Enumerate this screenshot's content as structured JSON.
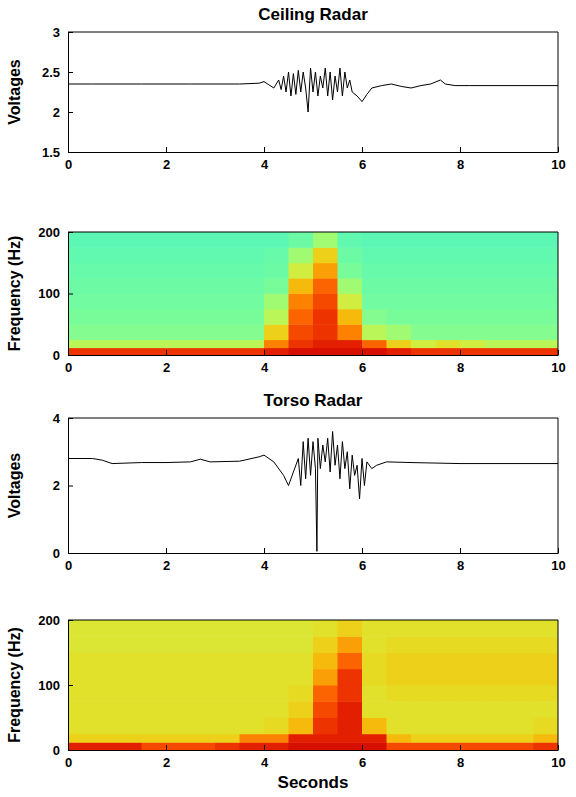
{
  "chart_data": [
    {
      "type": "line",
      "title": "Ceiling Radar",
      "y_label": "Voltages",
      "x": [
        0,
        0.5,
        1,
        1.5,
        2,
        2.5,
        3,
        3.5,
        3.9,
        4.0,
        4.1,
        4.2,
        4.3,
        4.35,
        4.4,
        4.45,
        4.5,
        4.55,
        4.6,
        4.65,
        4.7,
        4.75,
        4.8,
        4.85,
        4.9,
        4.95,
        5.0,
        5.05,
        5.1,
        5.15,
        5.2,
        5.25,
        5.3,
        5.35,
        5.4,
        5.45,
        5.5,
        5.55,
        5.6,
        5.65,
        5.7,
        5.75,
        5.8,
        5.9,
        6.0,
        6.1,
        6.2,
        6.4,
        6.6,
        6.8,
        7.0,
        7.2,
        7.4,
        7.6,
        7.7,
        7.9,
        8.2,
        9,
        10
      ],
      "series": [
        {
          "color": "#000000",
          "values": [
            2.35,
            2.35,
            2.35,
            2.35,
            2.35,
            2.35,
            2.35,
            2.35,
            2.36,
            2.38,
            2.34,
            2.3,
            2.4,
            2.28,
            2.45,
            2.25,
            2.5,
            2.2,
            2.48,
            2.22,
            2.52,
            2.25,
            2.5,
            2.3,
            2.0,
            2.55,
            2.25,
            2.5,
            2.2,
            2.45,
            2.3,
            2.55,
            2.2,
            2.5,
            2.15,
            2.45,
            2.25,
            2.55,
            2.2,
            2.5,
            2.3,
            2.4,
            2.25,
            2.2,
            2.13,
            2.22,
            2.3,
            2.33,
            2.35,
            2.32,
            2.3,
            2.33,
            2.35,
            2.4,
            2.35,
            2.33,
            2.33,
            2.33,
            2.33
          ]
        }
      ],
      "xlim": [
        0,
        10
      ],
      "xticks": [
        0,
        2,
        4,
        6,
        8,
        10
      ],
      "ylim": [
        1.5,
        3
      ],
      "yticks": [
        1.5,
        2,
        2.5,
        3
      ]
    },
    {
      "type": "heatmap",
      "y_label": "Frequency (Hz)",
      "x_bins": [
        0,
        0.5,
        1,
        1.5,
        2,
        2.5,
        3,
        3.5,
        4,
        4.5,
        5,
        5.5,
        6,
        6.5,
        7,
        7.5,
        8,
        8.5,
        9,
        9.5,
        10
      ],
      "y_bins": [
        0,
        12,
        25,
        50,
        75,
        100,
        125,
        150,
        175,
        200
      ],
      "cells": [
        [
          0.85,
          0.85,
          0.85,
          0.85,
          0.85,
          0.85,
          0.85,
          0.85,
          0.9,
          0.95,
          0.95,
          0.95,
          0.95,
          0.9,
          0.85,
          0.85,
          0.85,
          0.85,
          0.85,
          0.85
        ],
        [
          0.4,
          0.4,
          0.4,
          0.4,
          0.4,
          0.4,
          0.4,
          0.4,
          0.7,
          0.85,
          0.9,
          0.9,
          0.75,
          0.55,
          0.45,
          0.5,
          0.45,
          0.4,
          0.4,
          0.4
        ],
        [
          0.3,
          0.3,
          0.3,
          0.3,
          0.3,
          0.3,
          0.3,
          0.3,
          0.55,
          0.8,
          0.85,
          0.7,
          0.4,
          0.35,
          0.3,
          0.3,
          0.3,
          0.3,
          0.3,
          0.3
        ],
        [
          0.28,
          0.28,
          0.28,
          0.28,
          0.28,
          0.28,
          0.28,
          0.28,
          0.4,
          0.75,
          0.85,
          0.6,
          0.3,
          0.28,
          0.28,
          0.28,
          0.28,
          0.28,
          0.28,
          0.28
        ],
        [
          0.27,
          0.27,
          0.27,
          0.27,
          0.27,
          0.27,
          0.27,
          0.27,
          0.35,
          0.7,
          0.8,
          0.45,
          0.27,
          0.27,
          0.27,
          0.27,
          0.27,
          0.27,
          0.27,
          0.27
        ],
        [
          0.26,
          0.26,
          0.26,
          0.26,
          0.26,
          0.26,
          0.26,
          0.26,
          0.28,
          0.6,
          0.75,
          0.35,
          0.26,
          0.26,
          0.26,
          0.26,
          0.26,
          0.26,
          0.26,
          0.26
        ],
        [
          0.25,
          0.25,
          0.25,
          0.25,
          0.25,
          0.25,
          0.25,
          0.25,
          0.26,
          0.45,
          0.65,
          0.28,
          0.25,
          0.25,
          0.25,
          0.25,
          0.25,
          0.25,
          0.25,
          0.25
        ],
        [
          0.24,
          0.24,
          0.24,
          0.24,
          0.24,
          0.24,
          0.24,
          0.24,
          0.25,
          0.35,
          0.55,
          0.26,
          0.24,
          0.24,
          0.24,
          0.24,
          0.24,
          0.24,
          0.24,
          0.24
        ],
        [
          0.23,
          0.23,
          0.23,
          0.23,
          0.23,
          0.23,
          0.23,
          0.23,
          0.23,
          0.26,
          0.35,
          0.24,
          0.23,
          0.23,
          0.23,
          0.23,
          0.23,
          0.23,
          0.23,
          0.23
        ]
      ],
      "zlim": [
        0,
        1
      ],
      "xlim": [
        0,
        10
      ],
      "xticks": [
        0,
        2,
        4,
        6,
        8,
        10
      ],
      "ylim": [
        0,
        200
      ],
      "yticks": [
        0,
        100,
        200
      ]
    },
    {
      "type": "line",
      "title": "Torso Radar",
      "y_label": "Voltages",
      "x": [
        0,
        0.5,
        0.7,
        0.9,
        1.5,
        2,
        2.5,
        2.7,
        2.9,
        3.5,
        3.9,
        4.0,
        4.2,
        4.4,
        4.5,
        4.6,
        4.7,
        4.75,
        4.8,
        4.85,
        4.9,
        4.95,
        5.0,
        5.05,
        5.08,
        5.1,
        5.15,
        5.2,
        5.25,
        5.3,
        5.35,
        5.4,
        5.45,
        5.5,
        5.55,
        5.6,
        5.65,
        5.7,
        5.75,
        5.8,
        5.85,
        5.9,
        5.95,
        6.0,
        6.05,
        6.1,
        6.2,
        6.3,
        6.5,
        7,
        8,
        9,
        10
      ],
      "series": [
        {
          "color": "#000000",
          "values": [
            2.8,
            2.8,
            2.75,
            2.65,
            2.68,
            2.68,
            2.7,
            2.78,
            2.7,
            2.72,
            2.85,
            2.9,
            2.7,
            2.3,
            2.0,
            2.4,
            2.8,
            2.0,
            3.3,
            2.2,
            3.4,
            2.3,
            3.3,
            2.5,
            0.05,
            3.4,
            2.5,
            3.2,
            2.7,
            3.4,
            2.4,
            3.6,
            2.6,
            3.2,
            2.2,
            3.3,
            2.5,
            3.0,
            1.9,
            2.9,
            2.3,
            2.6,
            1.6,
            2.8,
            2.0,
            2.7,
            2.5,
            2.6,
            2.7,
            2.68,
            2.65,
            2.65,
            2.65
          ]
        }
      ],
      "xlim": [
        0,
        10
      ],
      "xticks": [
        0,
        2,
        4,
        6,
        8,
        10
      ],
      "ylim": [
        0,
        4
      ],
      "yticks": [
        0,
        2,
        4
      ]
    },
    {
      "type": "heatmap",
      "y_label": "Frequency (Hz)",
      "x_label": "Seconds",
      "x_bins": [
        0,
        0.5,
        1,
        1.5,
        2,
        2.5,
        3,
        3.5,
        4,
        4.5,
        5,
        5.5,
        6,
        6.5,
        7,
        7.5,
        8,
        8.5,
        9,
        9.5,
        10
      ],
      "y_bins": [
        0,
        12,
        25,
        50,
        75,
        100,
        125,
        150,
        175,
        200
      ],
      "cells": [
        [
          0.9,
          0.9,
          0.9,
          0.8,
          0.8,
          0.8,
          0.85,
          0.9,
          0.9,
          0.95,
          0.95,
          0.95,
          0.95,
          0.8,
          0.8,
          0.8,
          0.8,
          0.8,
          0.8,
          0.85
        ],
        [
          0.55,
          0.55,
          0.55,
          0.55,
          0.55,
          0.55,
          0.55,
          0.7,
          0.7,
          0.9,
          0.9,
          0.9,
          0.9,
          0.6,
          0.55,
          0.55,
          0.55,
          0.55,
          0.55,
          0.6
        ],
        [
          0.5,
          0.5,
          0.5,
          0.5,
          0.5,
          0.5,
          0.5,
          0.5,
          0.52,
          0.6,
          0.85,
          0.9,
          0.6,
          0.5,
          0.5,
          0.5,
          0.5,
          0.5,
          0.5,
          0.52
        ],
        [
          0.5,
          0.5,
          0.5,
          0.5,
          0.5,
          0.5,
          0.5,
          0.5,
          0.5,
          0.55,
          0.8,
          0.9,
          0.5,
          0.5,
          0.5,
          0.5,
          0.5,
          0.5,
          0.5,
          0.5
        ],
        [
          0.5,
          0.5,
          0.5,
          0.5,
          0.5,
          0.5,
          0.5,
          0.5,
          0.5,
          0.52,
          0.75,
          0.85,
          0.5,
          0.52,
          0.52,
          0.52,
          0.52,
          0.52,
          0.52,
          0.52
        ],
        [
          0.5,
          0.5,
          0.5,
          0.5,
          0.5,
          0.5,
          0.5,
          0.5,
          0.5,
          0.5,
          0.65,
          0.85,
          0.52,
          0.55,
          0.55,
          0.55,
          0.55,
          0.55,
          0.55,
          0.55
        ],
        [
          0.5,
          0.5,
          0.5,
          0.5,
          0.5,
          0.5,
          0.5,
          0.5,
          0.5,
          0.5,
          0.6,
          0.75,
          0.52,
          0.55,
          0.55,
          0.55,
          0.55,
          0.55,
          0.55,
          0.55
        ],
        [
          0.48,
          0.48,
          0.48,
          0.48,
          0.48,
          0.48,
          0.48,
          0.48,
          0.48,
          0.48,
          0.55,
          0.65,
          0.5,
          0.52,
          0.52,
          0.52,
          0.52,
          0.52,
          0.52,
          0.52
        ],
        [
          0.48,
          0.48,
          0.48,
          0.48,
          0.48,
          0.48,
          0.48,
          0.48,
          0.48,
          0.48,
          0.5,
          0.55,
          0.5,
          0.5,
          0.5,
          0.5,
          0.5,
          0.5,
          0.5,
          0.5
        ]
      ],
      "zlim": [
        0,
        1
      ],
      "xlim": [
        0,
        10
      ],
      "xticks": [
        0,
        2,
        4,
        6,
        8,
        10
      ],
      "ylim": [
        0,
        200
      ],
      "yticks": [
        0,
        100,
        200
      ]
    }
  ]
}
